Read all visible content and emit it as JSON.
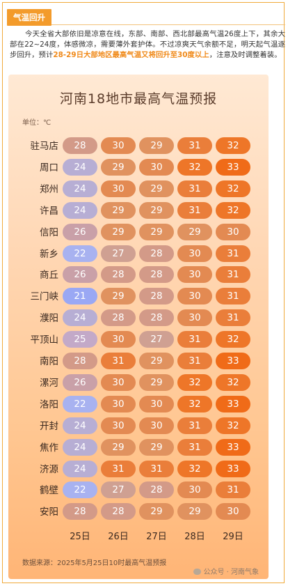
{
  "section_tag": "气温回升",
  "intro": {
    "text_plain": "今天全省大部依旧是凉意在线，东部、南部、西北部最高气温26度上下，其余大部在22~24度，体感微凉，需要薄外套护体。不过凉爽天气余额不足，明天起气温逐步回升，预计",
    "text_highlight": "28-29日大部地区最高气温又将回升至30度以上",
    "text_tail": "，注意及时调整着装。",
    "highlight_color": "#f08a1a"
  },
  "poster": {
    "title": "河南18地市最高气温预报",
    "unit": "单位：℃",
    "days": [
      "25日",
      "26日",
      "27日",
      "28日",
      "29日"
    ],
    "source": "数据来源：2025年5月25日10时最高气温预报",
    "watermark": "公众号 · 河南气象",
    "color_scale": {
      "21": "#9aa8f4",
      "22": "#a8b2f0",
      "24": "#b7aed4",
      "25": "#c3a9c8",
      "26": "#c9a0a8",
      "27": "#cfa092",
      "28": "#d39a88",
      "29": "#e0925f",
      "30": "#e38a52",
      "31": "#ea7e3a",
      "32": "#ee7628",
      "33": "#f06b18"
    }
  },
  "chart_data": {
    "type": "table",
    "title": "河南18地市最高气温预报",
    "unit": "℃",
    "columns": [
      "25日",
      "26日",
      "27日",
      "28日",
      "29日"
    ],
    "rows": [
      {
        "city": "驻马店",
        "values": [
          28,
          30,
          29,
          31,
          32
        ]
      },
      {
        "city": "周口",
        "values": [
          24,
          29,
          30,
          32,
          33
        ]
      },
      {
        "city": "郑州",
        "values": [
          24,
          30,
          29,
          31,
          32
        ]
      },
      {
        "city": "许昌",
        "values": [
          24,
          29,
          29,
          31,
          32
        ]
      },
      {
        "city": "信阳",
        "values": [
          26,
          29,
          29,
          29,
          30
        ]
      },
      {
        "city": "新乡",
        "values": [
          22,
          27,
          28,
          30,
          31
        ]
      },
      {
        "city": "商丘",
        "values": [
          26,
          28,
          28,
          30,
          31
        ]
      },
      {
        "city": "三门峡",
        "values": [
          21,
          29,
          28,
          30,
          31
        ]
      },
      {
        "city": "濮阳",
        "values": [
          24,
          28,
          28,
          30,
          31
        ]
      },
      {
        "city": "平顶山",
        "values": [
          25,
          30,
          27,
          31,
          32
        ]
      },
      {
        "city": "南阳",
        "values": [
          28,
          31,
          29,
          31,
          33
        ]
      },
      {
        "city": "漯河",
        "values": [
          26,
          30,
          29,
          32,
          32
        ]
      },
      {
        "city": "洛阳",
        "values": [
          22,
          30,
          30,
          32,
          33
        ]
      },
      {
        "city": "开封",
        "values": [
          24,
          30,
          30,
          31,
          32
        ]
      },
      {
        "city": "焦作",
        "values": [
          24,
          29,
          29,
          31,
          33
        ]
      },
      {
        "city": "济源",
        "values": [
          24,
          31,
          31,
          32,
          33
        ]
      },
      {
        "city": "鹤壁",
        "values": [
          22,
          27,
          28,
          30,
          31
        ]
      },
      {
        "city": "安阳",
        "values": [
          28,
          28,
          29,
          29,
          30
        ]
      }
    ]
  }
}
